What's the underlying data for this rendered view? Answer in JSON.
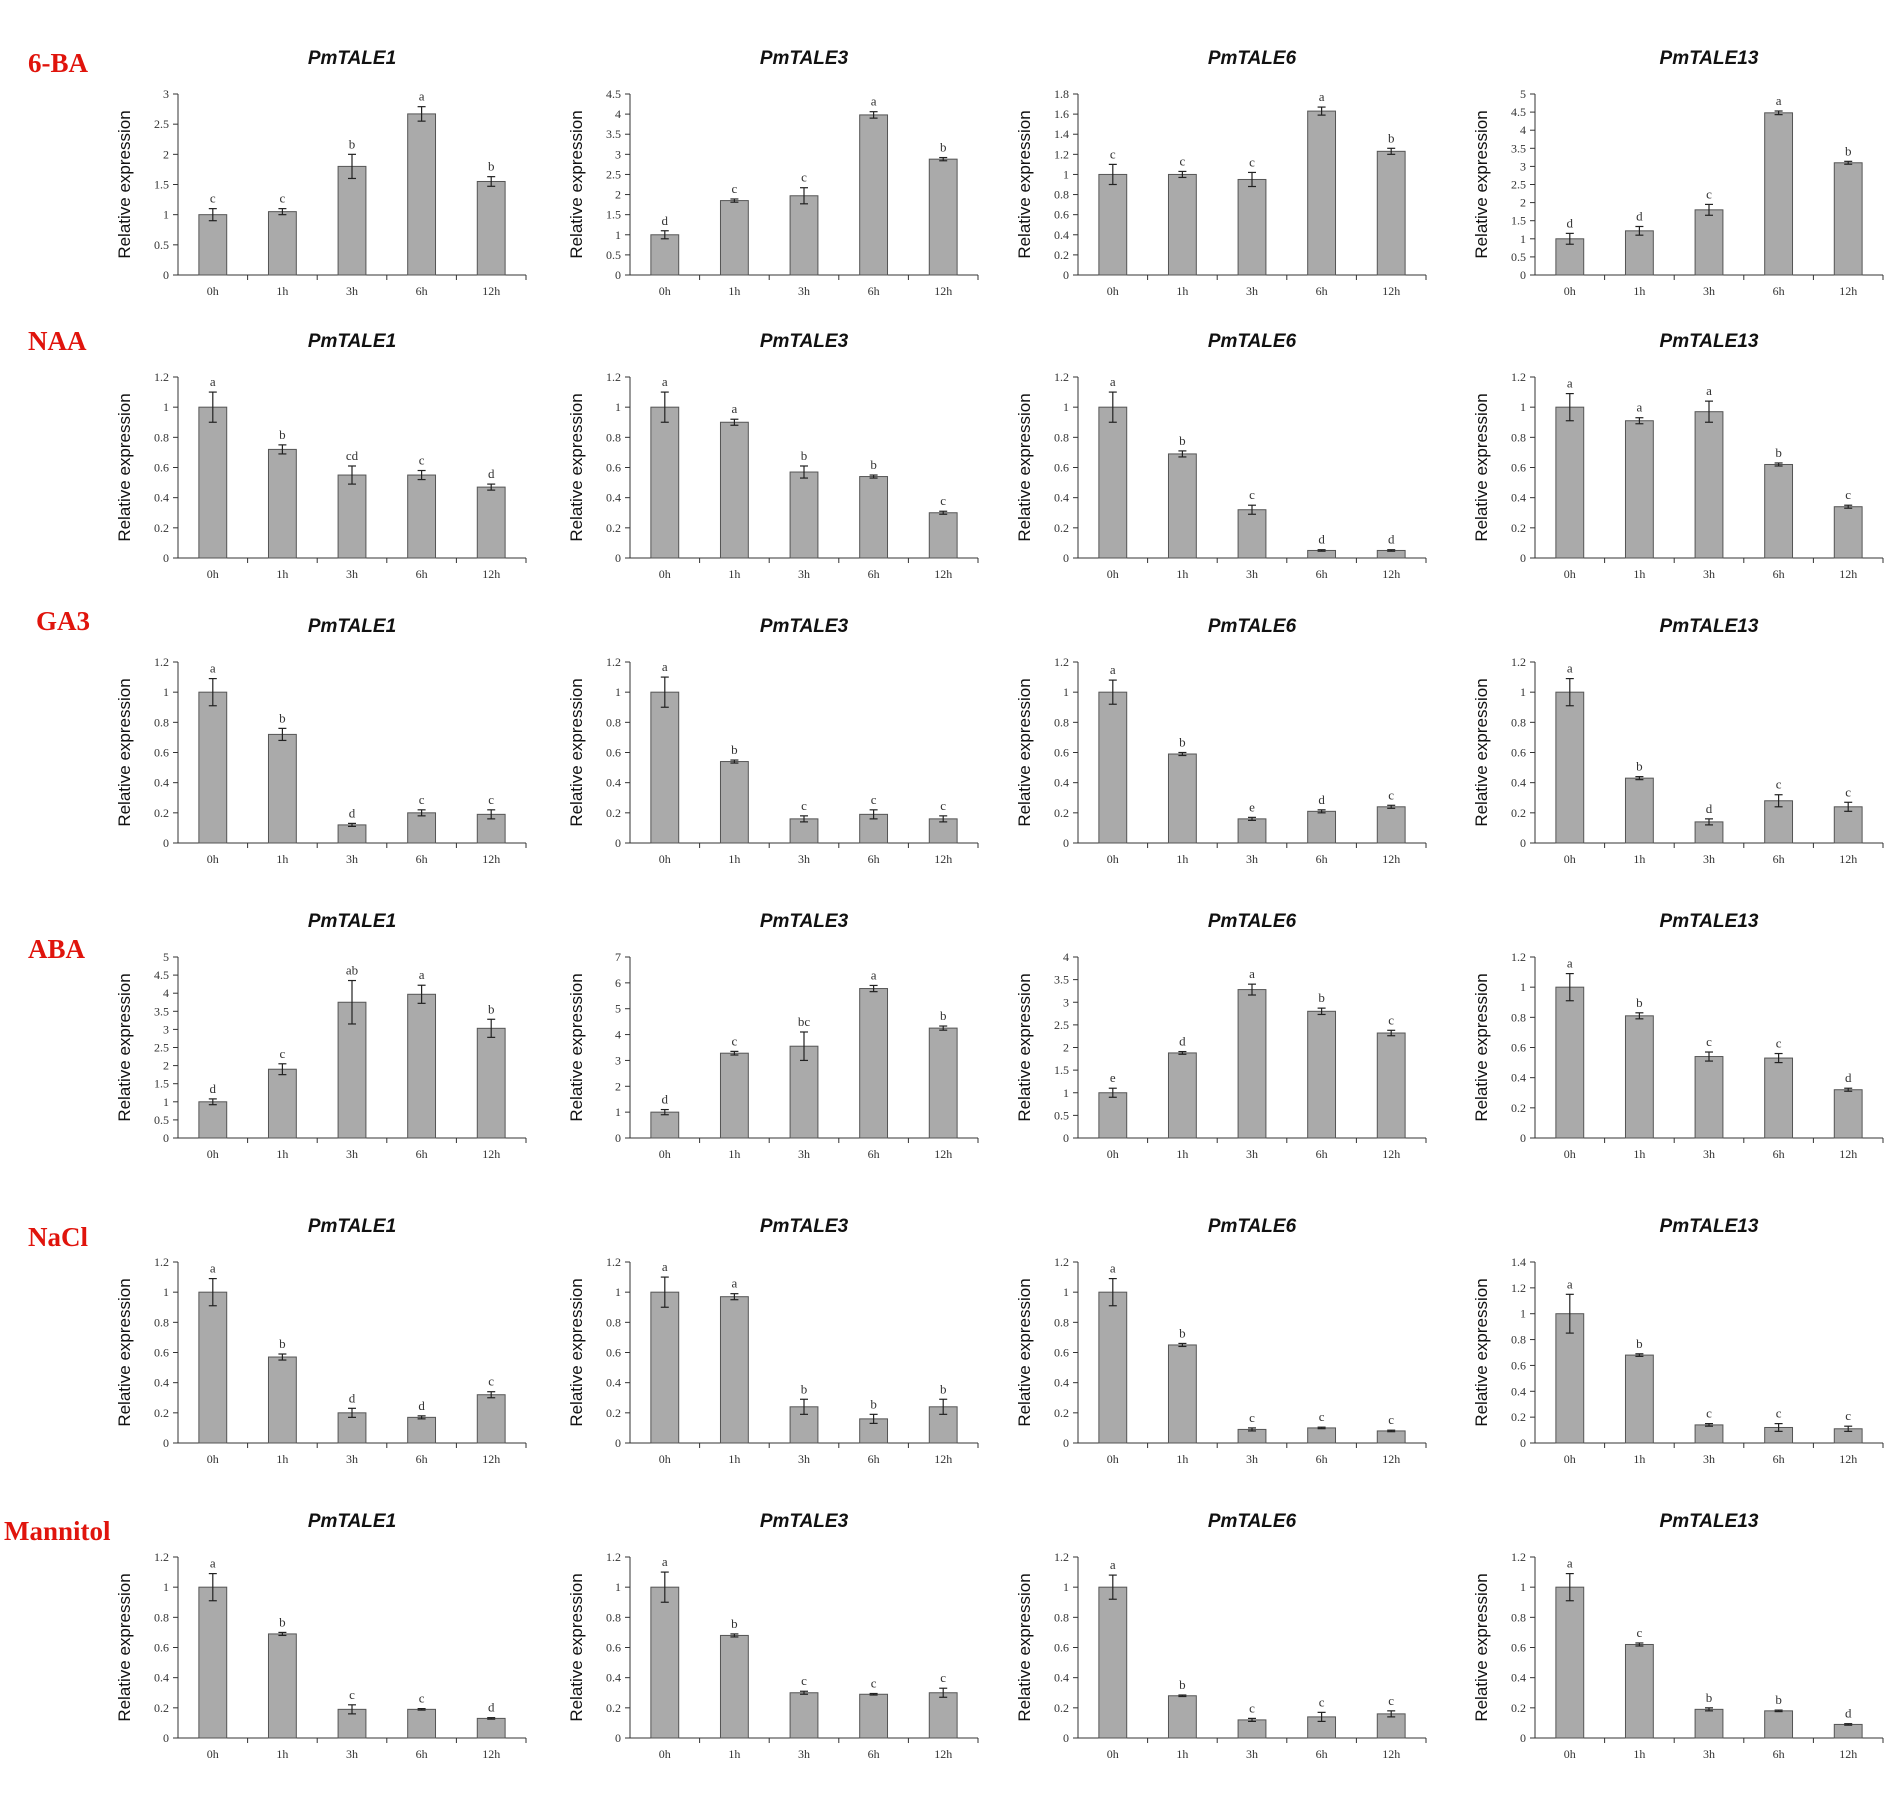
{
  "colors": {
    "bar": "#aaaaaa",
    "bar_edge": "#555555",
    "treatment_label": "#e0140c",
    "axis": "#333333"
  },
  "treatments": [
    "6-BA",
    "NAA",
    "GA3",
    "ABA",
    "NaCl",
    "Mannitol"
  ],
  "chart_data": [
    {
      "type": "bar",
      "treatment": "6-BA",
      "title": "PmTALE1",
      "ylabel": "Relative expression",
      "categories": [
        "0h",
        "1h",
        "3h",
        "6h",
        "12h"
      ],
      "values": [
        1.0,
        1.05,
        1.8,
        2.67,
        1.55
      ],
      "errors": [
        0.1,
        0.05,
        0.2,
        0.12,
        0.08
      ],
      "letters": [
        "c",
        "c",
        "b",
        "a",
        "b"
      ],
      "ylim": [
        0,
        3
      ],
      "ystep": 0.5,
      "yticks": [
        "0",
        "0.5",
        "1",
        "1.5",
        "2",
        "2.5",
        "3"
      ]
    },
    {
      "type": "bar",
      "treatment": "6-BA",
      "title": "PmTALE3",
      "ylabel": "Relative expression",
      "categories": [
        "0h",
        "1h",
        "3h",
        "6h",
        "12h"
      ],
      "values": [
        1.0,
        1.85,
        1.97,
        3.98,
        2.88
      ],
      "errors": [
        0.1,
        0.04,
        0.2,
        0.08,
        0.04
      ],
      "letters": [
        "d",
        "c",
        "c",
        "a",
        "b"
      ],
      "ylim": [
        0,
        4.5
      ],
      "ystep": 0.5,
      "yticks": [
        "0",
        "0.5",
        "1",
        "1.5",
        "2",
        "2.5",
        "3",
        "3.5",
        "4",
        "4.5"
      ]
    },
    {
      "type": "bar",
      "treatment": "6-BA",
      "title": "PmTALE6",
      "ylabel": "Relative expression",
      "categories": [
        "0h",
        "1h",
        "3h",
        "6h",
        "12h"
      ],
      "values": [
        1.0,
        1.0,
        0.95,
        1.63,
        1.23
      ],
      "errors": [
        0.1,
        0.03,
        0.07,
        0.04,
        0.03
      ],
      "letters": [
        "c",
        "c",
        "c",
        "a",
        "b"
      ],
      "ylim": [
        0,
        1.8
      ],
      "ystep": 0.2,
      "yticks": [
        "0",
        "0.2",
        "0.4",
        "0.6",
        "0.8",
        "1",
        "1.2",
        "1.4",
        "1.6",
        "1.8"
      ]
    },
    {
      "type": "bar",
      "treatment": "6-BA",
      "title": "PmTALE13",
      "ylabel": "Relative expression",
      "categories": [
        "0h",
        "1h",
        "3h",
        "6h",
        "12h"
      ],
      "values": [
        1.0,
        1.22,
        1.8,
        4.48,
        3.1
      ],
      "errors": [
        0.15,
        0.12,
        0.15,
        0.05,
        0.04
      ],
      "letters": [
        "d",
        "d",
        "c",
        "a",
        "b"
      ],
      "ylim": [
        0,
        5
      ],
      "ystep": 0.5,
      "yticks": [
        "0",
        "0.5",
        "1",
        "1.5",
        "2",
        "2.5",
        "3",
        "3.5",
        "4",
        "4.5",
        "5"
      ]
    },
    {
      "type": "bar",
      "treatment": "NAA",
      "title": "PmTALE1",
      "ylabel": "Relative expression",
      "categories": [
        "0h",
        "1h",
        "3h",
        "6h",
        "12h"
      ],
      "values": [
        1.0,
        0.72,
        0.55,
        0.55,
        0.47
      ],
      "errors": [
        0.1,
        0.03,
        0.06,
        0.03,
        0.02
      ],
      "letters": [
        "a",
        "b",
        "cd",
        "c",
        "d"
      ],
      "ylim": [
        0,
        1.2
      ],
      "ystep": 0.2,
      "yticks": [
        "0",
        "0.2",
        "0.4",
        "0.6",
        "0.8",
        "1",
        "1.2"
      ]
    },
    {
      "type": "bar",
      "treatment": "NAA",
      "title": "PmTALE3",
      "ylabel": "Relative expression",
      "categories": [
        "0h",
        "1h",
        "3h",
        "6h",
        "12h"
      ],
      "values": [
        1.0,
        0.9,
        0.57,
        0.54,
        0.3
      ],
      "errors": [
        0.1,
        0.02,
        0.04,
        0.01,
        0.01
      ],
      "letters": [
        "a",
        "a",
        "b",
        "b",
        "c"
      ],
      "ylim": [
        0,
        1.2
      ],
      "ystep": 0.2,
      "yticks": [
        "0",
        "0.2",
        "0.4",
        "0.6",
        "0.8",
        "1",
        "1.2"
      ]
    },
    {
      "type": "bar",
      "treatment": "NAA",
      "title": "PmTALE6",
      "ylabel": "Relative expression",
      "categories": [
        "0h",
        "1h",
        "3h",
        "6h",
        "12h"
      ],
      "values": [
        1.0,
        0.69,
        0.32,
        0.05,
        0.05
      ],
      "errors": [
        0.1,
        0.02,
        0.03,
        0.005,
        0.005
      ],
      "letters": [
        "a",
        "b",
        "c",
        "d",
        "d"
      ],
      "ylim": [
        0,
        1.2
      ],
      "ystep": 0.2,
      "yticks": [
        "0",
        "0.2",
        "0.4",
        "0.6",
        "0.8",
        "1",
        "1.2"
      ]
    },
    {
      "type": "bar",
      "treatment": "NAA",
      "title": "PmTALE13",
      "ylabel": "Relative expression",
      "categories": [
        "0h",
        "1h",
        "3h",
        "6h",
        "12h"
      ],
      "values": [
        1.0,
        0.91,
        0.97,
        0.62,
        0.34
      ],
      "errors": [
        0.09,
        0.02,
        0.07,
        0.01,
        0.01
      ],
      "letters": [
        "a",
        "a",
        "a",
        "b",
        "c"
      ],
      "ylim": [
        0,
        1.2
      ],
      "ystep": 0.2,
      "yticks": [
        "0",
        "0.2",
        "0.4",
        "0.6",
        "0.8",
        "1",
        "1.2"
      ]
    },
    {
      "type": "bar",
      "treatment": "GA3",
      "title": "PmTALE1",
      "ylabel": "Relative expression",
      "categories": [
        "0h",
        "1h",
        "3h",
        "6h",
        "12h"
      ],
      "values": [
        1.0,
        0.72,
        0.12,
        0.2,
        0.19
      ],
      "errors": [
        0.09,
        0.04,
        0.01,
        0.02,
        0.03
      ],
      "letters": [
        "a",
        "b",
        "d",
        "c",
        "c"
      ],
      "ylim": [
        0,
        1.2
      ],
      "ystep": 0.2,
      "yticks": [
        "0",
        "0.2",
        "0.4",
        "0.6",
        "0.8",
        "1",
        "1.2"
      ]
    },
    {
      "type": "bar",
      "treatment": "GA3",
      "title": "PmTALE3",
      "ylabel": "Relative expression",
      "categories": [
        "0h",
        "1h",
        "3h",
        "6h",
        "12h"
      ],
      "values": [
        1.0,
        0.54,
        0.16,
        0.19,
        0.16
      ],
      "errors": [
        0.1,
        0.01,
        0.02,
        0.03,
        0.02
      ],
      "letters": [
        "a",
        "b",
        "c",
        "c",
        "c"
      ],
      "ylim": [
        0,
        1.2
      ],
      "ystep": 0.2,
      "yticks": [
        "0",
        "0.2",
        "0.4",
        "0.6",
        "0.8",
        "1",
        "1.2"
      ]
    },
    {
      "type": "bar",
      "treatment": "GA3",
      "title": "PmTALE6",
      "ylabel": "Relative expression",
      "categories": [
        "0h",
        "1h",
        "3h",
        "6h",
        "12h"
      ],
      "values": [
        1.0,
        0.59,
        0.16,
        0.21,
        0.24
      ],
      "errors": [
        0.08,
        0.01,
        0.01,
        0.01,
        0.01
      ],
      "letters": [
        "a",
        "b",
        "e",
        "d",
        "c"
      ],
      "ylim": [
        0,
        1.2
      ],
      "ystep": 0.2,
      "yticks": [
        "0",
        "0.2",
        "0.4",
        "0.6",
        "0.8",
        "1",
        "1.2"
      ]
    },
    {
      "type": "bar",
      "treatment": "GA3",
      "title": "PmTALE13",
      "ylabel": "Relative expression",
      "categories": [
        "0h",
        "1h",
        "3h",
        "6h",
        "12h"
      ],
      "values": [
        1.0,
        0.43,
        0.14,
        0.28,
        0.24
      ],
      "errors": [
        0.09,
        0.01,
        0.02,
        0.04,
        0.03
      ],
      "letters": [
        "a",
        "b",
        "d",
        "c",
        "c"
      ],
      "ylim": [
        0,
        1.2
      ],
      "ystep": 0.2,
      "yticks": [
        "0",
        "0.2",
        "0.4",
        "0.6",
        "0.8",
        "1",
        "1.2"
      ]
    },
    {
      "type": "bar",
      "treatment": "ABA",
      "title": "PmTALE1",
      "ylabel": "Relative expression",
      "categories": [
        "0h",
        "1h",
        "3h",
        "6h",
        "12h"
      ],
      "values": [
        1.0,
        1.9,
        3.75,
        3.97,
        3.03
      ],
      "errors": [
        0.08,
        0.15,
        0.6,
        0.25,
        0.25
      ],
      "letters": [
        "d",
        "c",
        "ab",
        "a",
        "b"
      ],
      "ylim": [
        0,
        5
      ],
      "ystep": 0.5,
      "yticks": [
        "0",
        "0.5",
        "1",
        "1.5",
        "2",
        "2.5",
        "3",
        "3.5",
        "4",
        "4.5",
        "5"
      ]
    },
    {
      "type": "bar",
      "treatment": "ABA",
      "title": "PmTALE3",
      "ylabel": "Relative expression",
      "categories": [
        "0h",
        "1h",
        "3h",
        "6h",
        "12h"
      ],
      "values": [
        1.0,
        3.28,
        3.55,
        5.78,
        4.25
      ],
      "errors": [
        0.1,
        0.07,
        0.55,
        0.12,
        0.08
      ],
      "letters": [
        "d",
        "c",
        "bc",
        "a",
        "b"
      ],
      "ylim": [
        0,
        7
      ],
      "ystep": 1,
      "yticks": [
        "0",
        "1",
        "2",
        "3",
        "4",
        "5",
        "6",
        "7"
      ]
    },
    {
      "type": "bar",
      "treatment": "ABA",
      "title": "PmTALE6",
      "ylabel": "Relative expression",
      "categories": [
        "0h",
        "1h",
        "3h",
        "6h",
        "12h"
      ],
      "values": [
        1.0,
        1.88,
        3.28,
        2.8,
        2.32
      ],
      "errors": [
        0.1,
        0.03,
        0.12,
        0.07,
        0.06
      ],
      "letters": [
        "e",
        "d",
        "a",
        "b",
        "c"
      ],
      "ylim": [
        0,
        4
      ],
      "ystep": 0.5,
      "yticks": [
        "0",
        "0.5",
        "1",
        "1.5",
        "2",
        "2.5",
        "3",
        "3.5",
        "4"
      ]
    },
    {
      "type": "bar",
      "treatment": "ABA",
      "title": "PmTALE13",
      "ylabel": "Relative expression",
      "categories": [
        "0h",
        "1h",
        "3h",
        "6h",
        "12h"
      ],
      "values": [
        1.0,
        0.81,
        0.54,
        0.53,
        0.32
      ],
      "errors": [
        0.09,
        0.02,
        0.03,
        0.03,
        0.01
      ],
      "letters": [
        "a",
        "b",
        "c",
        "c",
        "d"
      ],
      "ylim": [
        0,
        1.2
      ],
      "ystep": 0.2,
      "yticks": [
        "0",
        "0.2",
        "0.4",
        "0.6",
        "0.8",
        "1",
        "1.2"
      ]
    },
    {
      "type": "bar",
      "treatment": "NaCl",
      "title": "PmTALE1",
      "ylabel": "Relative expression",
      "categories": [
        "0h",
        "1h",
        "3h",
        "6h",
        "12h"
      ],
      "values": [
        1.0,
        0.57,
        0.2,
        0.17,
        0.32
      ],
      "errors": [
        0.09,
        0.02,
        0.03,
        0.01,
        0.02
      ],
      "letters": [
        "a",
        "b",
        "d",
        "d",
        "c"
      ],
      "ylim": [
        0,
        1.2
      ],
      "ystep": 0.2,
      "yticks": [
        "0",
        "0.2",
        "0.4",
        "0.6",
        "0.8",
        "1",
        "1.2"
      ]
    },
    {
      "type": "bar",
      "treatment": "NaCl",
      "title": "PmTALE3",
      "ylabel": "Relative expression",
      "categories": [
        "0h",
        "1h",
        "3h",
        "6h",
        "12h"
      ],
      "values": [
        1.0,
        0.97,
        0.24,
        0.16,
        0.24
      ],
      "errors": [
        0.1,
        0.02,
        0.05,
        0.03,
        0.05
      ],
      "letters": [
        "a",
        "a",
        "b",
        "b",
        "b"
      ],
      "ylim": [
        0,
        1.2
      ],
      "ystep": 0.2,
      "yticks": [
        "0",
        "0.2",
        "0.4",
        "0.6",
        "0.8",
        "1",
        "1.2"
      ]
    },
    {
      "type": "bar",
      "treatment": "NaCl",
      "title": "PmTALE6",
      "ylabel": "Relative expression",
      "categories": [
        "0h",
        "1h",
        "3h",
        "6h",
        "12h"
      ],
      "values": [
        1.0,
        0.65,
        0.09,
        0.1,
        0.08
      ],
      "errors": [
        0.09,
        0.01,
        0.01,
        0.005,
        0.005
      ],
      "letters": [
        "a",
        "b",
        "c",
        "c",
        "c"
      ],
      "ylim": [
        0,
        1.2
      ],
      "ystep": 0.2,
      "yticks": [
        "0",
        "0.2",
        "0.4",
        "0.6",
        "0.8",
        "1",
        "1.2"
      ]
    },
    {
      "type": "bar",
      "treatment": "NaCl",
      "title": "PmTALE13",
      "ylabel": "Relative expression",
      "categories": [
        "0h",
        "1h",
        "3h",
        "6h",
        "12h"
      ],
      "values": [
        1.0,
        0.68,
        0.14,
        0.12,
        0.11
      ],
      "errors": [
        0.15,
        0.01,
        0.01,
        0.03,
        0.02
      ],
      "letters": [
        "a",
        "b",
        "c",
        "c",
        "c"
      ],
      "ylim": [
        0,
        1.4
      ],
      "ystep": 0.2,
      "yticks": [
        "0",
        "0.2",
        "0.4",
        "0.6",
        "0.8",
        "1",
        "1.2",
        "1.4"
      ]
    },
    {
      "type": "bar",
      "treatment": "Mannitol",
      "title": "PmTALE1",
      "ylabel": "Relative expression",
      "categories": [
        "0h",
        "1h",
        "3h",
        "6h",
        "12h"
      ],
      "values": [
        1.0,
        0.69,
        0.19,
        0.19,
        0.13
      ],
      "errors": [
        0.09,
        0.01,
        0.03,
        0.005,
        0.005
      ],
      "letters": [
        "a",
        "b",
        "c",
        "c",
        "d"
      ],
      "ylim": [
        0,
        1.2
      ],
      "ystep": 0.2,
      "yticks": [
        "0",
        "0.2",
        "0.4",
        "0.6",
        "0.8",
        "1",
        "1.2"
      ]
    },
    {
      "type": "bar",
      "treatment": "Mannitol",
      "title": "PmTALE3",
      "ylabel": "Relative expression",
      "categories": [
        "0h",
        "1h",
        "3h",
        "6h",
        "12h"
      ],
      "values": [
        1.0,
        0.68,
        0.3,
        0.29,
        0.3
      ],
      "errors": [
        0.1,
        0.01,
        0.01,
        0.005,
        0.03
      ],
      "letters": [
        "a",
        "b",
        "c",
        "c",
        "c"
      ],
      "ylim": [
        0,
        1.2
      ],
      "ystep": 0.2,
      "yticks": [
        "0",
        "0.2",
        "0.4",
        "0.6",
        "0.8",
        "1",
        "1.2"
      ]
    },
    {
      "type": "bar",
      "treatment": "Mannitol",
      "title": "PmTALE6",
      "ylabel": "Relative expression",
      "categories": [
        "0h",
        "1h",
        "3h",
        "6h",
        "12h"
      ],
      "values": [
        1.0,
        0.28,
        0.12,
        0.14,
        0.16
      ],
      "errors": [
        0.08,
        0.005,
        0.01,
        0.03,
        0.02
      ],
      "letters": [
        "a",
        "b",
        "c",
        "c",
        "c"
      ],
      "ylim": [
        0,
        1.2
      ],
      "ystep": 0.2,
      "yticks": [
        "0",
        "0.2",
        "0.4",
        "0.6",
        "0.8",
        "1",
        "1.2"
      ]
    },
    {
      "type": "bar",
      "treatment": "Mannitol",
      "title": "PmTALE13",
      "ylabel": "Relative expression",
      "categories": [
        "0h",
        "1h",
        "3h",
        "6h",
        "12h"
      ],
      "values": [
        1.0,
        0.62,
        0.19,
        0.18,
        0.09
      ],
      "errors": [
        0.09,
        0.01,
        0.01,
        0.005,
        0.005
      ],
      "letters": [
        "a",
        "c",
        "b",
        "b",
        "d"
      ],
      "ylim": [
        0,
        1.2
      ],
      "ystep": 0.2,
      "yticks": [
        "0",
        "0.2",
        "0.4",
        "0.6",
        "0.8",
        "1",
        "1.2"
      ]
    }
  ]
}
